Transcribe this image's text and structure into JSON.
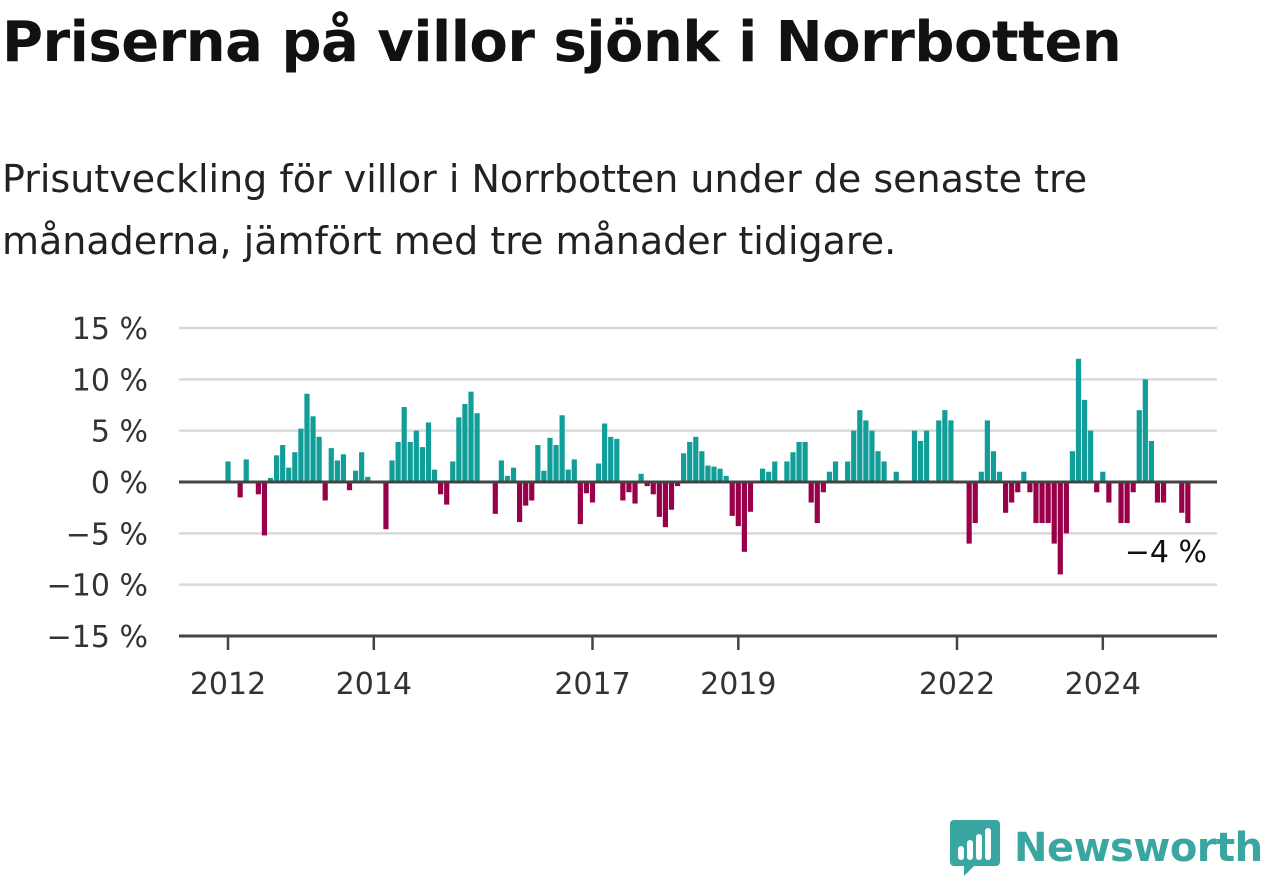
{
  "header": {
    "title": "Priserna på villor sjönk i Norrbotten",
    "subtitle": "Prisutveckling för villor i Norrbotten under de senaste tre månaderna, jämfört med tre månader tidigare."
  },
  "brand": {
    "name": "Newsworthy",
    "icon": "newsworthy-logo-icon",
    "color": "#3aa6a1"
  },
  "colors": {
    "positive": "#119e99",
    "negative": "#99004a",
    "grid": "#d9d9d9",
    "axis": "#444444"
  },
  "chart_data": {
    "type": "bar",
    "title": "Priserna på villor sjönk i Norrbotten",
    "xlabel": "",
    "ylabel": "",
    "ylim": [
      -15,
      15
    ],
    "y_ticks": [
      15,
      10,
      5,
      0,
      -5,
      -10,
      -15
    ],
    "y_tick_labels": [
      "15 %",
      "10 %",
      "5 %",
      "0 %",
      "−5 %",
      "−10 %",
      "−15 %"
    ],
    "x_tick_labels": [
      "2012",
      "2014",
      "2017",
      "2019",
      "2022",
      "2024"
    ],
    "x_tick_indices": [
      0,
      24,
      60,
      84,
      120,
      144
    ],
    "grid": true,
    "annotation": "−4 %",
    "series": [
      {
        "values": [
          2,
          0,
          -1.5,
          2.2,
          0,
          -1.2,
          -5.2,
          0.4,
          2.6,
          3.6,
          1.4,
          2.9,
          5.2,
          8.6,
          6.4,
          4.4,
          -1.8,
          3.3,
          2.1,
          2.7,
          -0.8,
          1.1,
          2.9,
          0.5,
          0,
          0,
          -4.6,
          2.1,
          3.9,
          7.3,
          3.9,
          5,
          3.4,
          5.8,
          1.2,
          -1.2,
          -2.2,
          2,
          6.3,
          7.6,
          8.8,
          6.7,
          0,
          0,
          -3.1,
          2.1,
          0.6,
          1.4,
          -3.9,
          -2.3,
          -1.8,
          3.6,
          1.1,
          4.3,
          3.6,
          6.5,
          1.2,
          2.2,
          -4.1,
          -1.1,
          -2,
          1.8,
          5.7,
          4.4,
          4.2,
          -1.8,
          -1,
          -2.1,
          0.8,
          -0.4,
          -1.2,
          -3.4,
          -4.4,
          -2.7,
          -0.4,
          2.8,
          3.9,
          4.4,
          3,
          1.6,
          1.5,
          1.3,
          0.6,
          -3.3,
          -4.3,
          -6.8,
          -2.9,
          0,
          1.3,
          1,
          2,
          0,
          2,
          2.9,
          3.9,
          3.9,
          -2,
          -4,
          -1,
          1,
          2,
          0,
          2,
          5,
          7,
          6,
          5,
          3,
          2,
          0,
          1,
          0,
          0,
          5,
          4,
          5,
          0,
          6,
          7,
          6,
          0,
          0,
          -6,
          -4,
          1,
          6,
          3,
          1,
          -3,
          -2,
          -1,
          1,
          -1,
          -4,
          -4,
          -4,
          -6,
          -9,
          -5,
          3,
          12,
          8,
          5,
          -1,
          1,
          -2,
          0,
          -4,
          -4,
          -1,
          7,
          10,
          4,
          -2,
          -2,
          0,
          0,
          -3,
          -4
        ]
      }
    ]
  }
}
